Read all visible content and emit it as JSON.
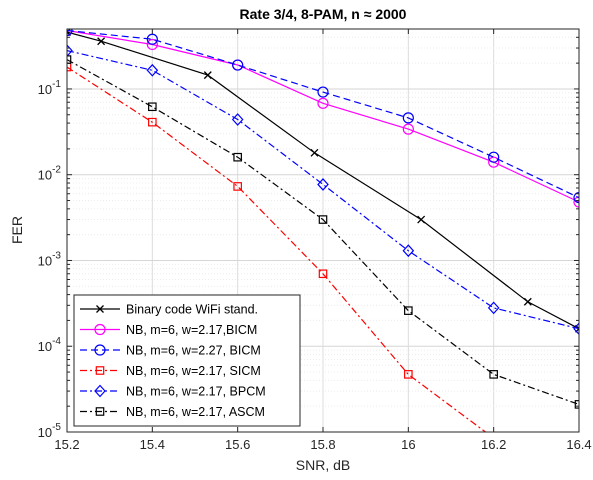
{
  "chart_data": {
    "type": "line",
    "title": "Rate 3/4, 8-PAM, n ≈ 2000",
    "xlabel": "SNR, dB",
    "ylabel": "FER",
    "xlim": [
      15.2,
      16.4
    ],
    "ylim": [
      1e-05,
      0.5
    ],
    "yscale": "log",
    "grid": true,
    "legend_position": "bottom-left",
    "x_ticks": [
      15.2,
      15.4,
      15.6,
      15.8,
      16,
      16.2,
      16.4
    ],
    "x_tick_labels": [
      "15.2",
      "15.4",
      "15.6",
      "15.8",
      "16",
      "16.2",
      "16.4"
    ],
    "y_ticks": [
      1e-05,
      0.0001,
      0.001,
      0.01,
      0.1
    ],
    "y_tick_labels": [
      {
        "base": "10",
        "exp": "-5"
      },
      {
        "base": "10",
        "exp": "-4"
      },
      {
        "base": "10",
        "exp": "-3"
      },
      {
        "base": "10",
        "exp": "-2"
      },
      {
        "base": "10",
        "exp": "-1"
      }
    ],
    "series": [
      {
        "name": "Binary code WiFi stand.",
        "color": "#000000",
        "dash": "solid",
        "marker": "x",
        "x": [
          15.2,
          15.28,
          15.53,
          15.78,
          16.03,
          16.28,
          16.4
        ],
        "y": [
          0.46,
          0.36,
          0.145,
          0.018,
          0.003,
          0.00033,
          0.00016
        ]
      },
      {
        "name": "NB, m=6,  w=2.17,BICM",
        "color": "#ff00ff",
        "dash": "solid",
        "marker": "circle",
        "x": [
          15.2,
          15.4,
          15.6,
          15.8,
          16.0,
          16.2,
          16.4
        ],
        "y": [
          0.48,
          0.33,
          0.19,
          0.068,
          0.034,
          0.014,
          0.0048
        ]
      },
      {
        "name": "NB, m=6,  w=2.27, BICM",
        "color": "#0000ff",
        "dash": "dash",
        "marker": "circle",
        "x": [
          15.2,
          15.4,
          15.6,
          15.8,
          16.0,
          16.2,
          16.4
        ],
        "y": [
          0.48,
          0.38,
          0.19,
          0.092,
          0.046,
          0.016,
          0.0054
        ]
      },
      {
        "name": "NB, m=6,  w=2.17, SICM",
        "color": "#ff0000",
        "dash": "dashdot",
        "marker": "square",
        "x": [
          15.2,
          15.4,
          15.6,
          15.8,
          16.0,
          16.2
        ],
        "y": [
          0.18,
          0.041,
          0.0073,
          0.0007,
          4.7e-05,
          8.5e-06
        ]
      },
      {
        "name": "NB, m=6,  w=2.17, BPCM",
        "color": "#0000ff",
        "dash": "dashdot",
        "marker": "diamond",
        "x": [
          15.2,
          15.4,
          15.6,
          15.8,
          16.0,
          16.2,
          16.4
        ],
        "y": [
          0.28,
          0.165,
          0.044,
          0.0077,
          0.0013,
          0.00028,
          0.00016
        ]
      },
      {
        "name": "NB, m=6,  w=2.17, ASCM",
        "color": "#000000",
        "dash": "dashdot",
        "marker": "square",
        "x": [
          15.2,
          15.4,
          15.6,
          15.8,
          16.0,
          16.2,
          16.4
        ],
        "y": [
          0.22,
          0.062,
          0.016,
          0.003,
          0.00026,
          4.7e-05,
          2.1e-05
        ]
      }
    ]
  }
}
